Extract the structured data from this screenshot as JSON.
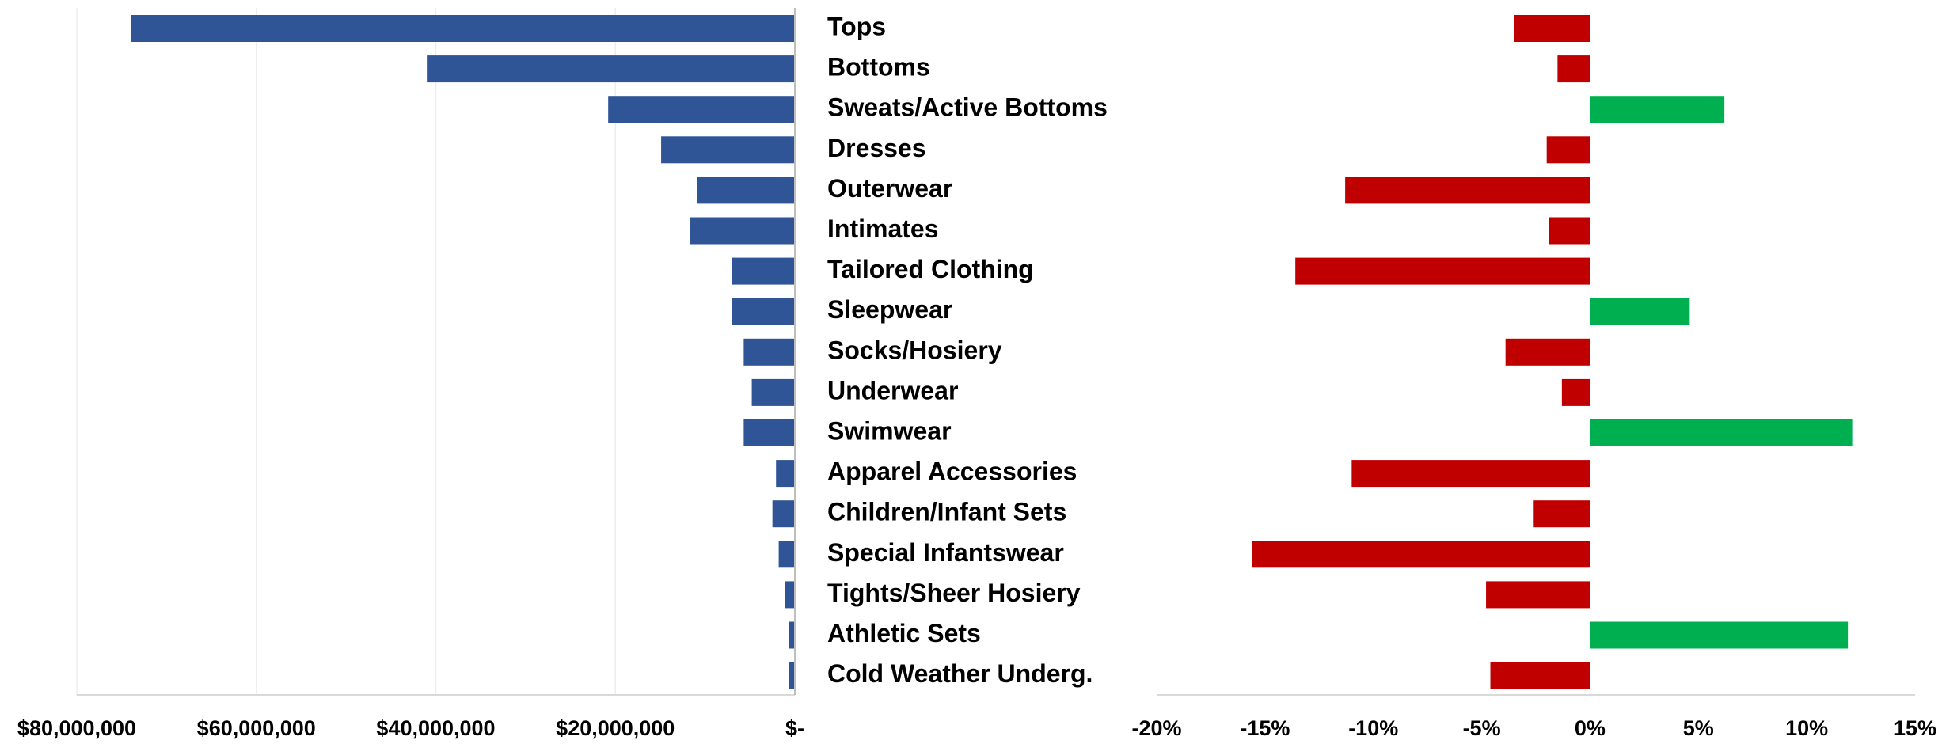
{
  "chart_data": [
    {
      "type": "hbar-reversed",
      "categories": [
        "Tops",
        "Bottoms",
        "Sweats/Active Bottoms",
        "Dresses",
        "Outerwear",
        "Intimates",
        "Tailored Clothing",
        "Sleepwear",
        "Socks/Hosiery",
        "Underwear",
        "Swimwear",
        "Apparel Accessories",
        "Children/Infant Sets",
        "Special Infantswear",
        "Tights/Sheer Hosiery",
        "Athletic Sets",
        "Cold Weather Underg."
      ],
      "values": [
        74000000,
        41000000,
        20800000,
        14900000,
        10900000,
        11700000,
        7000000,
        7000000,
        5700000,
        4800000,
        5700000,
        2100000,
        2500000,
        1800000,
        1100000,
        700000,
        700000
      ],
      "color": "#2f5597",
      "xlim": [
        80000000,
        0
      ],
      "xticks": [
        {
          "value": 80000000,
          "label": "$80,000,000"
        },
        {
          "value": 60000000,
          "label": "$60,000,000"
        },
        {
          "value": 40000000,
          "label": "$40,000,000"
        },
        {
          "value": 20000000,
          "label": "$20,000,000"
        },
        {
          "value": 0,
          "label": "$-"
        }
      ],
      "grid": true
    },
    {
      "type": "hbar-diverging",
      "values": [
        -3.5,
        -1.5,
        6.2,
        -2.0,
        -11.3,
        -1.9,
        -13.6,
        4.6,
        -3.9,
        -1.3,
        12.1,
        -11.0,
        -2.6,
        -15.6,
        -4.8,
        11.9,
        -4.6
      ],
      "positive_color": "#00b050",
      "negative_color": "#c00000",
      "xlim": [
        -20,
        15
      ],
      "xticks": [
        {
          "value": -20,
          "label": "-20%"
        },
        {
          "value": -15,
          "label": "-15%"
        },
        {
          "value": -10,
          "label": "-10%"
        },
        {
          "value": -5,
          "label": "-5%"
        },
        {
          "value": 0,
          "label": "0%"
        },
        {
          "value": 5,
          "label": "5%"
        },
        {
          "value": 10,
          "label": "10%"
        },
        {
          "value": 15,
          "label": "15%"
        }
      ],
      "grid": false
    }
  ]
}
